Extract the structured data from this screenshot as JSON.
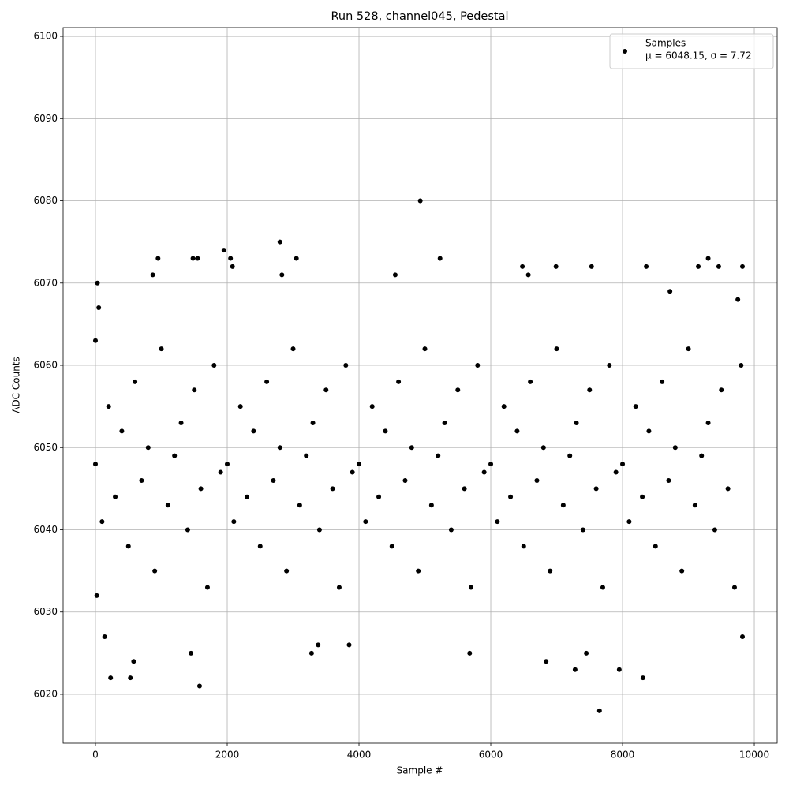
{
  "chart_data": {
    "type": "scatter",
    "title": "Run 528, channel045, Pedestal",
    "x_label": "Sample #",
    "y_label": "ADC Counts",
    "xlim": [
      -491,
      10347
    ],
    "ylim": [
      6014.05,
      6101.06
    ],
    "xticks": [
      0,
      2000,
      4000,
      6000,
      8000,
      10000
    ],
    "yticks": [
      6020,
      6030,
      6040,
      6050,
      6060,
      6070,
      6080,
      6090,
      6100
    ],
    "grid": true,
    "legend": "upper right",
    "legend_note": "μ = 6048.15, σ = 7.72",
    "series": [
      {
        "name": "Samples",
        "color": "#000000",
        "x": [
          0,
          100,
          200,
          300,
          400,
          500,
          600,
          700,
          800,
          900,
          1000,
          1100,
          1200,
          1300,
          1400,
          1500,
          1600,
          1700,
          1800,
          1900,
          2000,
          2100,
          2200,
          2300,
          2400,
          2500,
          2600,
          2700,
          2800,
          2900,
          3000,
          3100,
          3200,
          3300,
          3400,
          3500,
          3600,
          3700,
          3800,
          3900,
          4000,
          4100,
          4200,
          4300,
          4400,
          4500,
          4600,
          4700,
          4800,
          4900,
          5000,
          5100,
          5200,
          5300,
          5400,
          5500,
          5600,
          5700,
          5800,
          5900,
          6000,
          6100,
          6200,
          6300,
          6400,
          6500,
          6600,
          6700,
          6800,
          6900,
          7000,
          7100,
          7200,
          7300,
          7400,
          7500,
          7600,
          7700,
          7800,
          7900,
          8000,
          8100,
          8200,
          8300,
          8400,
          8500,
          8600,
          8700,
          8800,
          8900,
          9000,
          9100,
          9200,
          9300,
          9400,
          9500,
          9600,
          9700,
          9800,
          30,
          50,
          0,
          20,
          230,
          530,
          580,
          140,
          870,
          950,
          1580,
          1550,
          1480,
          1450,
          1950,
          2050,
          2080,
          2800,
          2830,
          3050,
          3280,
          3380,
          3850,
          4930,
          4550,
          5230,
          5680,
          6480,
          6570,
          6840,
          6990,
          7280,
          7530,
          7650,
          7450,
          7950,
          8310,
          8360,
          8720,
          9150,
          9300,
          9460,
          9820,
          9820,
          9750
        ],
        "y": [
          6048,
          6041,
          6055,
          6044,
          6052,
          6038,
          6058,
          6046,
          6050,
          6035,
          6062,
          6043,
          6049,
          6053,
          6040,
          6057,
          6045,
          6033,
          6060,
          6047,
          6048,
          6041,
          6055,
          6044,
          6052,
          6038,
          6058,
          6046,
          6050,
          6035,
          6062,
          6043,
          6049,
          6053,
          6040,
          6057,
          6045,
          6033,
          6060,
          6047,
          6048,
          6041,
          6055,
          6044,
          6052,
          6038,
          6058,
          6046,
          6050,
          6035,
          6062,
          6043,
          6049,
          6053,
          6040,
          6057,
          6045,
          6033,
          6060,
          6047,
          6048,
          6041,
          6055,
          6044,
          6052,
          6038,
          6058,
          6046,
          6050,
          6035,
          6062,
          6043,
          6049,
          6053,
          6040,
          6057,
          6045,
          6033,
          6060,
          6047,
          6048,
          6041,
          6055,
          6044,
          6052,
          6038,
          6058,
          6046,
          6050,
          6035,
          6062,
          6043,
          6049,
          6053,
          6040,
          6057,
          6045,
          6033,
          6060,
          6070,
          6067,
          6063,
          6032,
          6022,
          6022,
          6024,
          6027,
          6071,
          6073,
          6021,
          6073,
          6073,
          6025,
          6074,
          6073,
          6072,
          6075,
          6071,
          6073,
          6025,
          6026,
          6026,
          6080,
          6071,
          6073,
          6025,
          6072,
          6071,
          6024,
          6072,
          6023,
          6072,
          6018,
          6025,
          6023,
          6022,
          6072,
          6069,
          6072,
          6073,
          6072,
          6072,
          6027,
          6068
        ]
      }
    ]
  }
}
